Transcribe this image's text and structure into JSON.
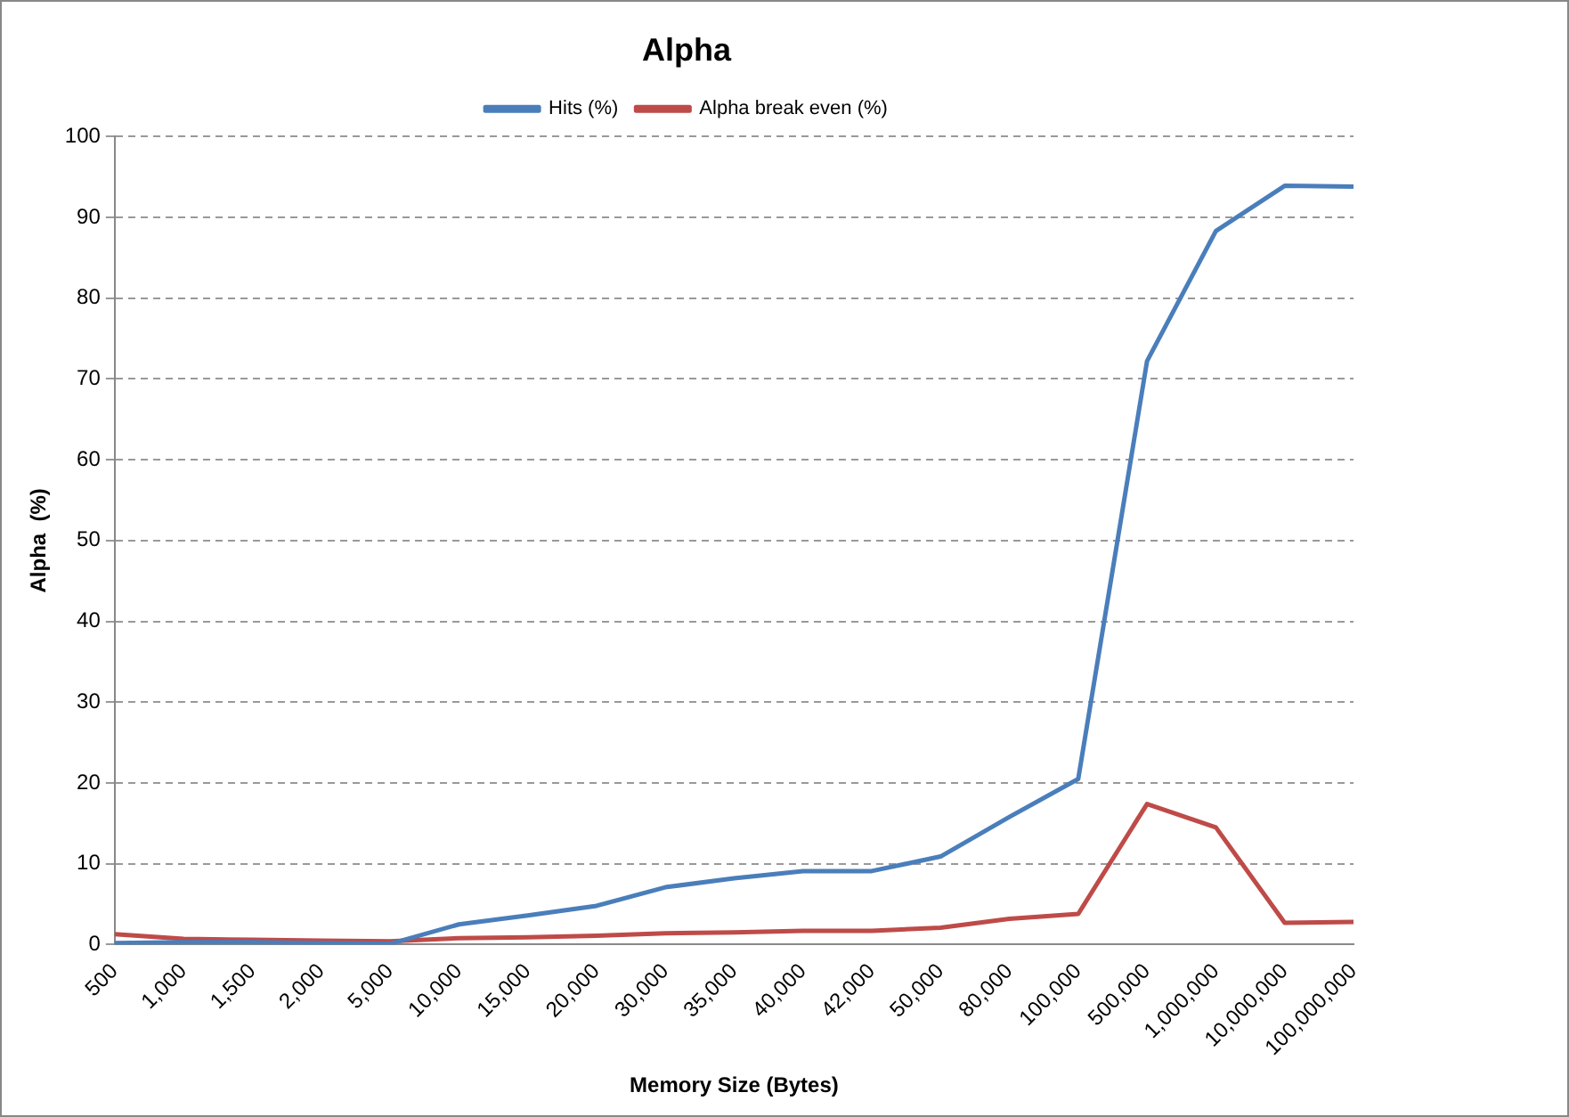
{
  "chart_data": {
    "type": "line",
    "title": "Alpha",
    "xlabel": "Memory Size (Bytes)",
    "ylabel": "Alpha  (%)",
    "categories": [
      "500",
      "1,000",
      "1,500",
      "2,000",
      "5,000",
      "10,000",
      "15,000",
      "20,000",
      "30,000",
      "35,000",
      "40,000",
      "42,000",
      "50,000",
      "80,000",
      "100,000",
      "500,000",
      "1,000,000",
      "10,000,000",
      "100,000,000"
    ],
    "series": [
      {
        "name": "Hits (%)",
        "color": "#4a7ebb",
        "values": [
          0.2,
          0.3,
          0.3,
          0.2,
          0.1,
          2.5,
          3.6,
          4.8,
          7.1,
          8.2,
          9.1,
          9.1,
          10.9,
          15.8,
          20.5,
          72.2,
          88.3,
          93.9,
          93.8
        ]
      },
      {
        "name": "Alpha break even (%)",
        "color": "#be4b48",
        "values": [
          1.3,
          0.7,
          0.6,
          0.5,
          0.4,
          0.8,
          0.9,
          1.1,
          1.4,
          1.5,
          1.7,
          1.7,
          2.1,
          3.2,
          3.8,
          17.4,
          14.5,
          2.7,
          2.8
        ]
      }
    ],
    "ylim": [
      0,
      100
    ],
    "yticks": [
      0,
      10,
      20,
      30,
      40,
      50,
      60,
      70,
      80,
      90,
      100
    ],
    "grid": "y",
    "legend": "top",
    "marker": "none",
    "line_style": "solid"
  }
}
